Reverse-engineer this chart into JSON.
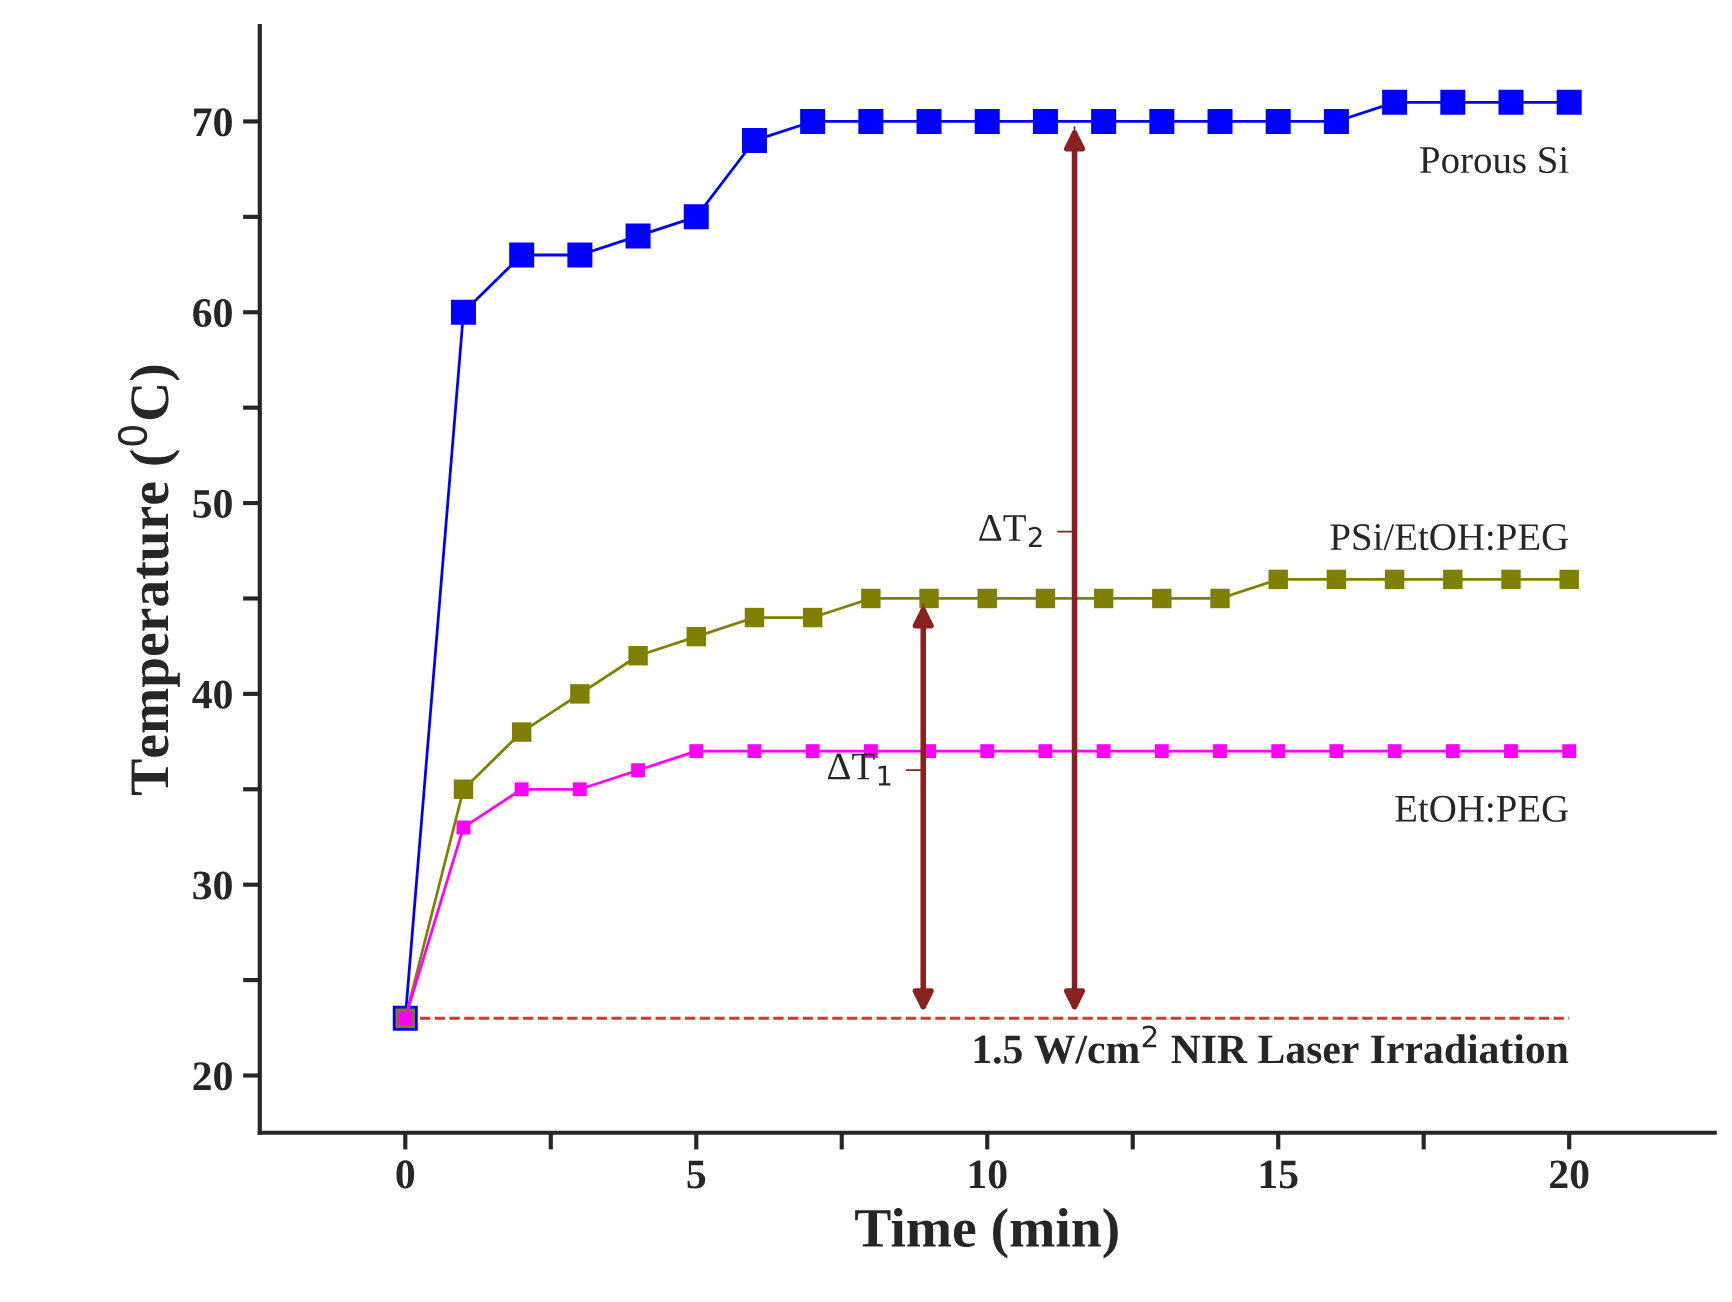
{
  "chart_data": {
    "type": "line",
    "xlabel": "Time (min)",
    "ylabel": "Temperature ($^{0}$C)",
    "x": [
      0,
      1,
      2,
      3,
      4,
      5,
      6,
      7,
      8,
      9,
      10,
      11,
      12,
      13,
      14,
      15,
      16,
      17,
      18,
      19,
      20
    ],
    "series": [
      {
        "name": "Porous Si",
        "color": "#0000ff",
        "values": [
          23,
          60,
          63,
          63,
          64,
          65,
          69,
          70,
          70,
          70,
          70,
          70,
          70,
          70,
          70,
          70,
          70,
          71,
          71,
          71,
          71
        ]
      },
      {
        "name": "PSi/EtOH:PEG",
        "color": "#808000",
        "values": [
          23,
          35,
          38,
          40,
          42,
          43,
          44,
          44,
          45,
          45,
          45,
          45,
          45,
          45,
          45,
          46,
          46,
          46,
          46,
          46,
          46
        ]
      },
      {
        "name": "EtOH:PEG",
        "color": "#ff00ff",
        "values": [
          23,
          33,
          35,
          35,
          36,
          37,
          37,
          37,
          37,
          37,
          37,
          37,
          37,
          37,
          37,
          37,
          37,
          37,
          37,
          37,
          37
        ]
      }
    ],
    "xlim": [
      -2.5,
      22.5
    ],
    "ylim": [
      17,
      75
    ],
    "xticks": [
      0,
      {
        "value": 2.5,
        "label": null
      },
      5,
      {
        "value": 7.5,
        "label": null
      },
      10,
      {
        "value": 12.5,
        "label": null
      },
      15,
      {
        "value": 17.5,
        "label": null
      },
      20
    ],
    "yticks": [
      20,
      {
        "value": 25,
        "label": null
      },
      30,
      {
        "value": 35,
        "label": null
      },
      40,
      {
        "value": 45,
        "label": null
      },
      50,
      {
        "value": 55,
        "label": null
      },
      60,
      {
        "value": 65,
        "label": null
      },
      70
    ],
    "ref_lines": [
      {
        "axis": "y",
        "value": 23,
        "label": "1.5 W/cm$^{2}$ NIR Laser Irradiation",
        "color": "#e03030",
        "line_style": "dashed"
      }
    ],
    "annotations": [
      {
        "text": "ΔT$_{1}$",
        "x": 8.9,
        "y": 45
      },
      {
        "text": "ΔT$_{2}$",
        "x": 11.5,
        "y": 70
      }
    ],
    "marker": "square",
    "line_style": "solid",
    "grid": false,
    "legend": false
  }
}
